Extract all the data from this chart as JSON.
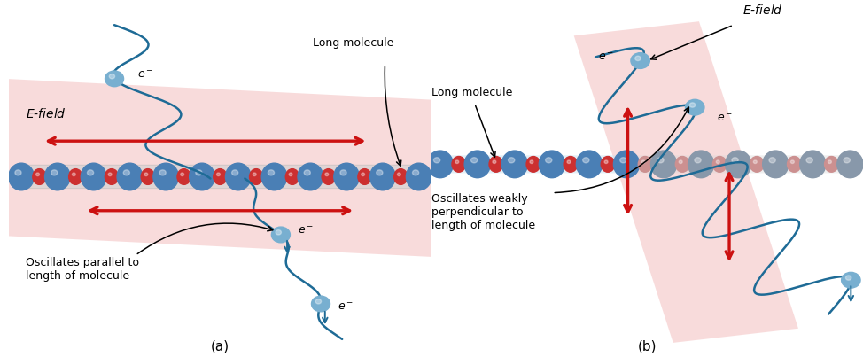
{
  "fig_width": 9.74,
  "fig_height": 4.03,
  "bg_color": "#ffffff",
  "panel_a_label": "(a)",
  "panel_b_label": "(b)",
  "e_field_label": "$E$-field",
  "long_molecule_label": "Long molecule",
  "osc_parallel_label": "Oscillates parallel to\nlength of molecule",
  "osc_perp_label": "Oscillates weakly\nperpendicular to\nlength of molecule",
  "plane_color": "#f2b8b8",
  "plane_alpha": 0.5,
  "mol_large_color": "#4a7fb5",
  "mol_small_color": "#cc3030",
  "mol_gray_color": "#8898aa",
  "mol_gray_small_color": "#cc9090",
  "wave_color": "#1e6b96",
  "arrow_color": "#cc1111",
  "electron_color": "#78afd0",
  "text_color": "#000000",
  "wave_lw": 1.8
}
